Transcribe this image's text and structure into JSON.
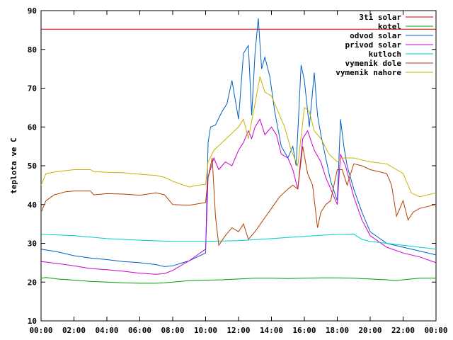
{
  "chart_data": {
    "type": "line",
    "title": "",
    "xlabel": "",
    "ylabel": "teplota ve C",
    "xlim": [
      0,
      24
    ],
    "ylim": [
      10,
      90
    ],
    "grid": false,
    "legend_position": "top-right",
    "x_ticks": [
      "00:00",
      "02:00",
      "04:00",
      "06:00",
      "08:00",
      "10:00",
      "12:00",
      "14:00",
      "16:00",
      "18:00",
      "20:00",
      "22:00",
      "00:00"
    ],
    "y_ticks": [
      10,
      20,
      30,
      40,
      50,
      60,
      70,
      80,
      90
    ],
    "series": [
      {
        "name": "3ti solar",
        "color": "#cc0000",
        "x": [
          0,
          24
        ],
        "y": [
          85.2,
          85.2
        ]
      },
      {
        "name": "kotel",
        "color": "#00a000",
        "x": [
          0,
          0.3,
          1,
          2,
          3,
          4,
          5,
          6,
          7,
          7.5,
          8,
          9,
          10,
          11,
          12,
          13,
          14,
          15,
          16,
          17,
          18,
          19,
          20,
          21,
          21.5,
          22,
          23,
          24
        ],
        "y": [
          21,
          21.2,
          20.8,
          20.5,
          20.2,
          20,
          19.8,
          19.7,
          19.7,
          19.8,
          20,
          20.4,
          20.5,
          20.6,
          20.8,
          21,
          21,
          20.9,
          21,
          21.1,
          21.1,
          21,
          20.8,
          20.6,
          20.4,
          20.6,
          21,
          21
        ]
      },
      {
        "name": "odvod solar",
        "color": "#0060c0",
        "x": [
          0,
          1,
          2,
          3,
          4,
          5,
          6,
          7,
          7.5,
          8,
          9,
          10,
          10.15,
          10.3,
          10.6,
          11,
          11.3,
          11.6,
          12,
          12.3,
          12.6,
          12.8,
          13,
          13.2,
          13.4,
          13.6,
          13.9,
          14.2,
          14.6,
          15,
          15.3,
          15.5,
          15.8,
          16,
          16.3,
          16.6,
          16.8,
          17,
          17.3,
          17.6,
          18,
          18.2,
          18.4,
          18.6,
          19,
          19.5,
          20,
          21,
          22,
          23,
          24
        ],
        "y": [
          28.5,
          27.8,
          26.8,
          26.2,
          25.8,
          25.3,
          25,
          24.5,
          24,
          24.2,
          25.5,
          27.5,
          56,
          60,
          60.5,
          64,
          66,
          72,
          62,
          79,
          81,
          63,
          79,
          88,
          75,
          78,
          73,
          64,
          55,
          52,
          55,
          50,
          76,
          72,
          60,
          74,
          63,
          58,
          52,
          46,
          41,
          62,
          55,
          50,
          44,
          38,
          33,
          30,
          29,
          28,
          27
        ]
      },
      {
        "name": "privod solar",
        "color": "#cc00cc",
        "x": [
          0,
          1,
          2,
          3,
          4,
          5,
          6,
          7,
          7.5,
          8,
          9,
          10,
          10.15,
          10.5,
          10.8,
          11.2,
          11.6,
          12,
          12.3,
          12.6,
          12.8,
          13,
          13.3,
          13.6,
          14,
          14.3,
          14.6,
          15,
          15.3,
          15.6,
          15.9,
          16.2,
          16.6,
          17,
          17.3,
          17.6,
          18,
          18.2,
          18.5,
          19,
          19.5,
          20,
          21,
          22,
          23,
          24
        ],
        "y": [
          25.3,
          24.8,
          24.2,
          23.5,
          23.2,
          22.8,
          22.3,
          22,
          22.2,
          23,
          25.5,
          28.5,
          47,
          52,
          49,
          51,
          50,
          54,
          56,
          59,
          57,
          60,
          62,
          58,
          60,
          58,
          53,
          52,
          49,
          44,
          57,
          59,
          54,
          51,
          47,
          44,
          40,
          53,
          50,
          42,
          36,
          32,
          29,
          27.5,
          26.5,
          25
        ]
      },
      {
        "name": "kutloch",
        "color": "#00cccc",
        "x": [
          0,
          2,
          4,
          6,
          8,
          10,
          12,
          14,
          16,
          18,
          19,
          19.5,
          20,
          21,
          22,
          23,
          24
        ],
        "y": [
          32.3,
          32,
          31.2,
          30.8,
          30.5,
          30.5,
          30.7,
          31.2,
          31.8,
          32.3,
          32.4,
          31,
          30.5,
          30,
          29.5,
          29,
          28.5
        ]
      },
      {
        "name": "vymenik dole",
        "color": "#b04000",
        "x": [
          0,
          0.3,
          0.8,
          1.5,
          2,
          3,
          3.2,
          4,
          5,
          6,
          7,
          7.5,
          8,
          9,
          10,
          10.15,
          10.4,
          10.6,
          10.8,
          11.2,
          11.6,
          12,
          12.3,
          12.6,
          13,
          13.5,
          14,
          14.5,
          15,
          15.3,
          15.6,
          15.9,
          16.2,
          16.5,
          16.8,
          17,
          17.3,
          17.6,
          18,
          18.3,
          18.6,
          19,
          19.5,
          20,
          21,
          21.3,
          21.6,
          22,
          22.3,
          22.6,
          23,
          24
        ],
        "y": [
          38,
          41,
          42.5,
          43.3,
          43.5,
          43.5,
          42.5,
          42.8,
          42.7,
          42.4,
          43,
          42.5,
          40,
          39.8,
          40.5,
          47,
          52,
          37,
          29.5,
          32,
          34,
          33,
          35,
          31,
          33,
          36,
          39,
          42,
          44,
          45,
          44,
          55,
          48,
          45,
          34,
          38,
          40,
          41,
          49,
          49,
          45,
          50.5,
          50,
          49,
          48,
          45,
          37,
          41,
          36,
          38,
          39,
          40
        ]
      },
      {
        "name": "vymenik nahore",
        "color": "#c8b400",
        "x": [
          0,
          0.3,
          1,
          2,
          3,
          3.2,
          4,
          5,
          6,
          7,
          7.5,
          8,
          9,
          9.5,
          10,
          10.15,
          10.5,
          11,
          11.5,
          12,
          12.3,
          12.6,
          13,
          13.3,
          13.6,
          14,
          14.4,
          14.8,
          15.2,
          15.6,
          16,
          16.3,
          16.6,
          17,
          17.5,
          18,
          18.3,
          18.6,
          19,
          19.5,
          20,
          21,
          22,
          22.5,
          23,
          24
        ],
        "y": [
          45,
          48,
          48.5,
          49,
          49,
          48.5,
          48.3,
          48.2,
          47.8,
          47.5,
          47,
          46,
          44.5,
          45,
          45.2,
          51,
          54,
          56,
          58,
          60,
          62,
          57,
          66,
          73,
          69,
          68,
          64,
          60,
          54,
          50,
          65,
          64,
          59,
          57,
          53,
          51,
          52,
          52,
          52,
          51.5,
          51,
          50.5,
          48,
          43,
          42,
          43
        ]
      }
    ]
  }
}
